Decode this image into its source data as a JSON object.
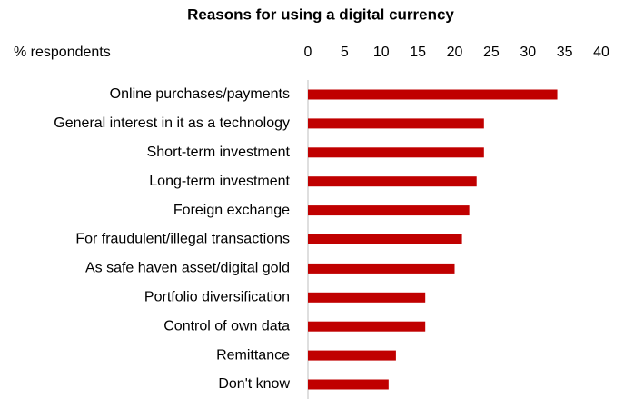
{
  "chart_data": {
    "type": "bar",
    "orientation": "horizontal",
    "title": "Reasons for using a digital currency",
    "axis_label": "% respondents",
    "categories": [
      "Online purchases/payments",
      "General interest in it as a technology",
      "Short-term investment",
      "Long-term investment",
      "Foreign exchange",
      "For fraudulent/illegal transactions",
      "As safe haven asset/digital gold",
      "Portfolio diversification",
      "Control of own data",
      "Remittance",
      "Don't know"
    ],
    "values": [
      34,
      24,
      24,
      23,
      22,
      21,
      20,
      16,
      16,
      12,
      11
    ],
    "color": "#c00000",
    "xlim": [
      0,
      40
    ],
    "xticks": [
      0,
      5,
      10,
      15,
      20,
      25,
      30,
      35,
      40
    ],
    "grid": false
  }
}
